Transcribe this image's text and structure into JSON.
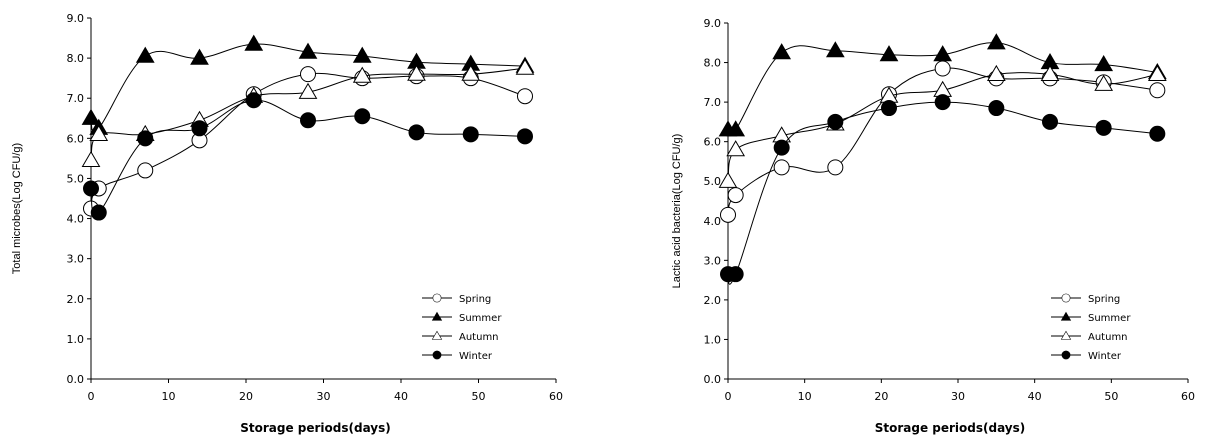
{
  "chart_data": [
    {
      "type": "line",
      "xlabel": "Storage periods(days)",
      "ylabel": "Total microbes(Log CFU/g)",
      "xlim": [
        0,
        60
      ],
      "ylim": [
        0,
        9
      ],
      "xticks": [
        "0",
        "10",
        "20",
        "30",
        "40",
        "50",
        "60"
      ],
      "yticks": [
        "0.0",
        "1.0",
        "2.0",
        "3.0",
        "4.0",
        "5.0",
        "6.0",
        "7.0",
        "8.0",
        "9.0"
      ],
      "grid": false,
      "legend_position": "bottom-right",
      "series": [
        {
          "name": "Spring",
          "marker": "circle-open",
          "x": [
            0,
            1,
            7,
            14,
            21,
            28,
            35,
            42,
            49,
            56
          ],
          "y": [
            4.25,
            4.75,
            5.2,
            5.95,
            7.1,
            7.6,
            7.5,
            7.55,
            7.5,
            7.05
          ]
        },
        {
          "name": "Summer",
          "marker": "triangle-filled",
          "x": [
            0,
            1,
            7,
            14,
            21,
            28,
            35,
            42,
            49,
            56
          ],
          "y": [
            6.5,
            6.25,
            8.05,
            8.0,
            8.35,
            8.15,
            8.05,
            7.9,
            7.85,
            7.8
          ]
        },
        {
          "name": "Autumn",
          "marker": "triangle-open",
          "x": [
            0,
            1,
            7,
            14,
            21,
            28,
            35,
            42,
            49,
            56
          ],
          "y": [
            5.45,
            6.1,
            6.1,
            6.45,
            7.05,
            7.15,
            7.55,
            7.6,
            7.6,
            7.75
          ]
        },
        {
          "name": "Winter",
          "marker": "circle-filled",
          "x": [
            0,
            1,
            7,
            14,
            21,
            28,
            35,
            42,
            49,
            56
          ],
          "y": [
            4.75,
            4.15,
            6.0,
            6.25,
            6.95,
            6.45,
            6.55,
            6.15,
            6.1,
            6.05
          ]
        }
      ]
    },
    {
      "type": "line",
      "xlabel": "Storage periods(days)",
      "ylabel": "Lactic acid bacteria(Log CFU/g)",
      "xlim": [
        0,
        60
      ],
      "ylim": [
        0,
        9
      ],
      "xticks": [
        "0",
        "10",
        "20",
        "30",
        "40",
        "50",
        "60"
      ],
      "yticks": [
        "0.0",
        "1.0",
        "2.0",
        "3.0",
        "4.0",
        "5.0",
        "6.0",
        "7.0",
        "8.0",
        "9.0"
      ],
      "grid": false,
      "legend_position": "bottom-right",
      "series": [
        {
          "name": "Spring",
          "marker": "circle-open",
          "x": [
            0,
            1,
            7,
            14,
            21,
            28,
            35,
            42,
            49,
            56
          ],
          "y": [
            4.15,
            4.65,
            5.35,
            5.35,
            7.2,
            7.85,
            7.6,
            7.6,
            7.5,
            7.3
          ]
        },
        {
          "name": "Summer",
          "marker": "triangle-filled",
          "x": [
            0,
            1,
            7,
            14,
            21,
            28,
            35,
            42,
            49,
            56
          ],
          "y": [
            6.3,
            6.3,
            8.25,
            8.3,
            8.2,
            8.2,
            8.5,
            8.0,
            7.95,
            7.75
          ]
        },
        {
          "name": "Autumn",
          "marker": "triangle-open",
          "x": [
            0,
            1,
            7,
            14,
            21,
            28,
            35,
            42,
            49,
            56
          ],
          "y": [
            5.0,
            5.8,
            6.15,
            6.45,
            7.15,
            7.3,
            7.7,
            7.7,
            7.45,
            7.7
          ]
        },
        {
          "name": "Winter",
          "marker": "circle-filled",
          "x": [
            0,
            1,
            7,
            14,
            21,
            28,
            35,
            42,
            49,
            56
          ],
          "y": [
            2.65,
            2.65,
            5.85,
            6.5,
            6.85,
            7.0,
            6.85,
            6.5,
            6.35,
            6.2
          ]
        }
      ]
    }
  ]
}
